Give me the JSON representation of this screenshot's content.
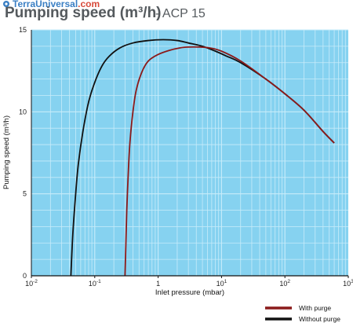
{
  "header": {
    "title": "Pumping speed (m³/h)",
    "model": "- ACP 15",
    "watermark": "TerraUniversal",
    "watermark_suffix": ".com"
  },
  "colors": {
    "plot_background": "#86d2f0",
    "grid": "#c8ecfa",
    "with_purge": "#8b1a1a",
    "without_purge": "#111111"
  },
  "chart_data": {
    "type": "line",
    "xscale": "log",
    "xlim": [
      0.01,
      1000
    ],
    "ylim": [
      0,
      15
    ],
    "xlabel": "Inlet pressure (mbar)",
    "ylabel": "Pumping speed (m³/h)",
    "xticks": [
      {
        "value": 0.01,
        "base": "10",
        "exp": "-2"
      },
      {
        "value": 0.1,
        "base": "10",
        "exp": "-1"
      },
      {
        "value": 1,
        "base": "1",
        "exp": ""
      },
      {
        "value": 10,
        "base": "10",
        "exp": "1"
      },
      {
        "value": 100,
        "base": "10",
        "exp": "2"
      },
      {
        "value": 1000,
        "base": "10",
        "exp": "3"
      }
    ],
    "yticks": [
      0,
      5,
      10,
      15
    ],
    "grid": true,
    "legend_position": "bottom-right",
    "series": [
      {
        "name": "With purge",
        "color": "#8b1a1a",
        "x": [
          0.3,
          0.31,
          0.32,
          0.34,
          0.36,
          0.4,
          0.45,
          0.55,
          0.7,
          1.0,
          1.5,
          2.2,
          3.0,
          4.5,
          6.5,
          10,
          20,
          50,
          100,
          200,
          400,
          600
        ],
        "y": [
          0.0,
          2.0,
          4.0,
          6.5,
          8.2,
          10.0,
          11.3,
          12.4,
          13.1,
          13.5,
          13.75,
          13.9,
          13.95,
          13.95,
          13.9,
          13.7,
          13.1,
          12.0,
          11.1,
          10.1,
          8.8,
          8.1
        ]
      },
      {
        "name": "Without purge",
        "color": "#111111",
        "x": [
          0.042,
          0.045,
          0.05,
          0.055,
          0.065,
          0.08,
          0.1,
          0.13,
          0.17,
          0.25,
          0.4,
          0.7,
          1.2,
          2.0,
          3.0,
          5.0,
          8.0,
          12,
          20,
          50,
          100,
          200,
          400,
          600
        ],
        "y": [
          0.0,
          2.5,
          5.0,
          6.8,
          8.8,
          10.6,
          11.8,
          12.8,
          13.4,
          13.9,
          14.2,
          14.35,
          14.4,
          14.35,
          14.2,
          14.0,
          13.7,
          13.4,
          13.0,
          12.0,
          11.1,
          10.1,
          8.8,
          8.1
        ]
      }
    ]
  }
}
